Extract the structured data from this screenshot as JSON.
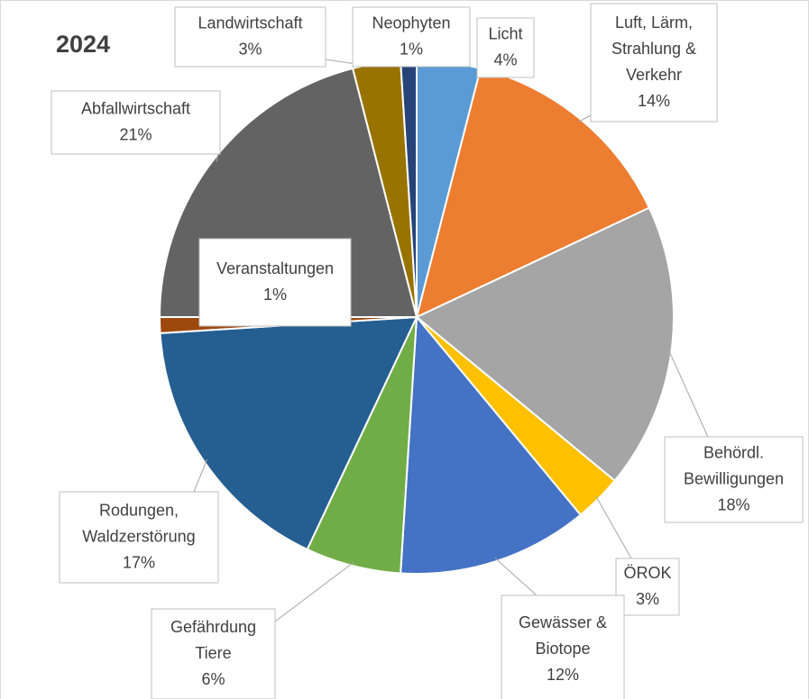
{
  "chart_data": {
    "type": "pie",
    "title": "2024",
    "categories": [
      "Licht",
      "Luft, Lärm, Strahlung & Verkehr",
      "Behördl. Bewilligungen",
      "ÖROK",
      "Gewässer & Biotope",
      "Gefährdung Tiere",
      "Rodungen, Waldzerstörung",
      "Veranstaltungen",
      "Abfallwirtschaft",
      "Landwirtschaft",
      "Neophyten"
    ],
    "values": [
      4,
      14,
      18,
      3,
      12,
      6,
      17,
      1,
      21,
      3,
      1
    ],
    "value_labels": [
      "4%",
      "14%",
      "18%",
      "3%",
      "12%",
      "6%",
      "17%",
      "1%",
      "21%",
      "3%",
      "1%"
    ],
    "colors": [
      "#5b9bd5",
      "#ed7d31",
      "#a5a5a5",
      "#ffc000",
      "#4472c4",
      "#70ad47",
      "#255e91",
      "#9e480e",
      "#636363",
      "#997300",
      "#264478"
    ]
  }
}
